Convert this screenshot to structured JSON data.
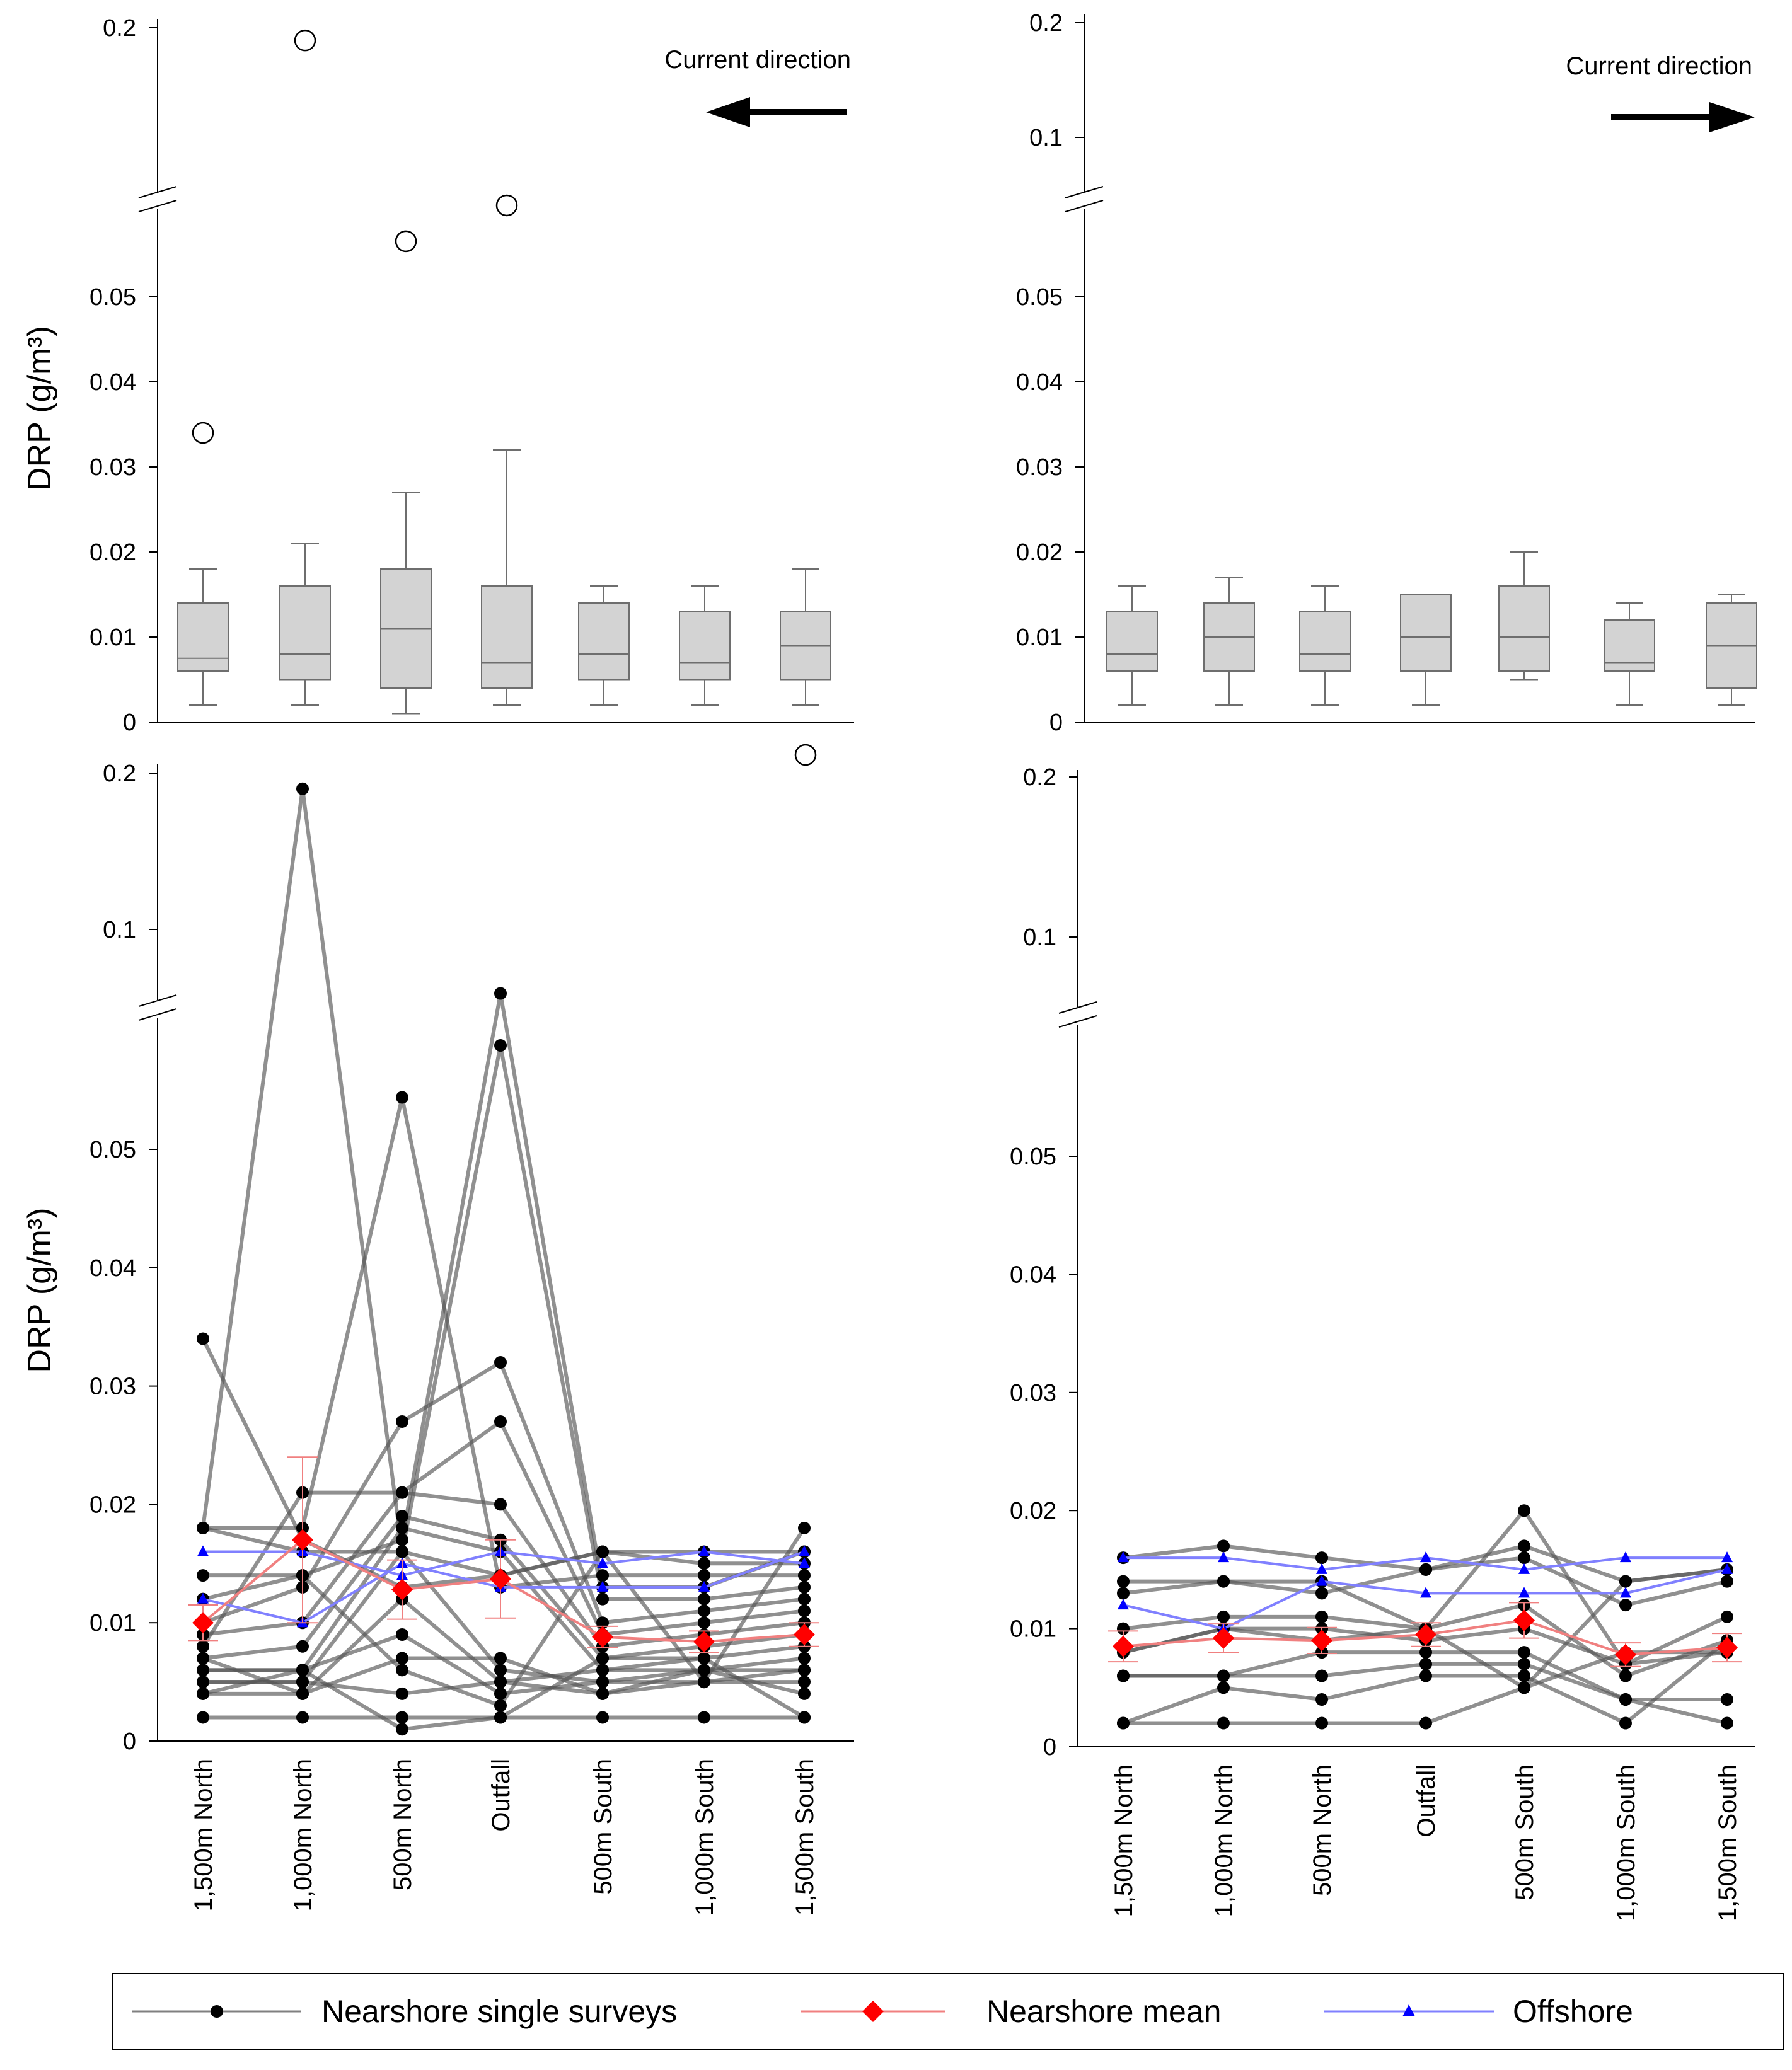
{
  "categories": [
    "1,500m North",
    "1,000m North",
    "500m North",
    "Outfall",
    "500m South",
    "1,000m South",
    "1,500m South"
  ],
  "chart_data": [
    {
      "id": "top-left",
      "type": "box",
      "ylabel": "DRP (g/m³)",
      "annotation": "Current direction",
      "arrow": "left",
      "yticks": [
        "0",
        "0.01",
        "0.02",
        "0.03",
        "0.04",
        "0.05",
        "0.2"
      ],
      "axis_break": true,
      "boxes": [
        {
          "min": 0.002,
          "q1": 0.006,
          "median": 0.0075,
          "q3": 0.014,
          "max": 0.018,
          "outliers": [
            0.034
          ]
        },
        {
          "min": 0.002,
          "q1": 0.005,
          "median": 0.008,
          "q3": 0.016,
          "max": 0.021,
          "outliers": [
            0.19
          ]
        },
        {
          "min": 0.001,
          "q1": 0.004,
          "median": 0.011,
          "q3": 0.018,
          "max": 0.027,
          "outliers": [
            0.055
          ]
        },
        {
          "min": 0.002,
          "q1": 0.004,
          "median": 0.007,
          "q3": 0.016,
          "max": 0.032,
          "outliers": [
            0.06
          ]
        },
        {
          "min": 0.002,
          "q1": 0.005,
          "median": 0.008,
          "q3": 0.014,
          "max": 0.016,
          "outliers": []
        },
        {
          "min": 0.002,
          "q1": 0.005,
          "median": 0.007,
          "q3": 0.013,
          "max": 0.016,
          "outliers": []
        },
        {
          "min": 0.002,
          "q1": 0.005,
          "median": 0.009,
          "q3": 0.013,
          "max": 0.018,
          "outliers": [
            0.2
          ]
        }
      ]
    },
    {
      "id": "top-right",
      "type": "box",
      "ylabel": "",
      "annotation": "Current direction",
      "arrow": "right",
      "yticks": [
        "0",
        "0.01",
        "0.02",
        "0.03",
        "0.04",
        "0.05",
        "0.1",
        "0.2"
      ],
      "axis_break": true,
      "boxes": [
        {
          "min": 0.002,
          "q1": 0.006,
          "median": 0.008,
          "q3": 0.013,
          "max": 0.016,
          "outliers": []
        },
        {
          "min": 0.002,
          "q1": 0.006,
          "median": 0.01,
          "q3": 0.014,
          "max": 0.017,
          "outliers": []
        },
        {
          "min": 0.002,
          "q1": 0.006,
          "median": 0.008,
          "q3": 0.013,
          "max": 0.016,
          "outliers": []
        },
        {
          "min": 0.002,
          "q1": 0.006,
          "median": 0.01,
          "q3": 0.015,
          "max": 0.015,
          "outliers": []
        },
        {
          "min": 0.005,
          "q1": 0.006,
          "median": 0.01,
          "q3": 0.016,
          "max": 0.02,
          "outliers": []
        },
        {
          "min": 0.002,
          "q1": 0.006,
          "median": 0.007,
          "q3": 0.012,
          "max": 0.014,
          "outliers": []
        },
        {
          "min": 0.002,
          "q1": 0.004,
          "median": 0.009,
          "q3": 0.014,
          "max": 0.015,
          "outliers": []
        }
      ]
    },
    {
      "id": "bottom-left",
      "type": "line",
      "ylabel": "DRP (g/m³)",
      "yticks": [
        "0",
        "0.01",
        "0.02",
        "0.03",
        "0.04",
        "0.05",
        "0.1",
        "0.2"
      ],
      "axis_break": true,
      "surveys": [
        [
          0.034,
          0.017,
          0.013,
          0.014,
          0.016,
          0.016,
          0.016
        ],
        [
          0.018,
          0.19,
          0.016,
          0.014,
          0.016,
          0.015,
          0.015
        ],
        [
          0.018,
          0.018,
          0.055,
          0.013,
          0.014,
          0.014,
          0.014
        ],
        [
          0.014,
          0.014,
          0.017,
          0.065,
          0.013,
          0.013,
          0.016
        ],
        [
          0.018,
          0.016,
          0.016,
          0.06,
          0.012,
          0.012,
          0.013
        ],
        [
          0.01,
          0.013,
          0.027,
          0.032,
          0.01,
          0.011,
          0.012
        ],
        [
          0.009,
          0.01,
          0.021,
          0.027,
          0.009,
          0.01,
          0.011
        ],
        [
          0.008,
          0.021,
          0.021,
          0.02,
          0.008,
          0.009,
          0.01
        ],
        [
          0.007,
          0.008,
          0.019,
          0.017,
          0.007,
          0.008,
          0.009
        ],
        [
          0.006,
          0.006,
          0.018,
          0.016,
          0.006,
          0.007,
          0.008
        ],
        [
          0.005,
          0.005,
          0.016,
          0.006,
          0.005,
          0.006,
          0.007
        ],
        [
          0.004,
          0.004,
          0.012,
          0.005,
          0.004,
          0.005,
          0.006
        ],
        [
          0.006,
          0.006,
          0.009,
          0.004,
          0.005,
          0.005,
          0.005
        ],
        [
          0.007,
          0.004,
          0.007,
          0.007,
          0.004,
          0.006,
          0.004
        ],
        [
          0.002,
          0.002,
          0.002,
          0.002,
          0.002,
          0.002,
          0.002
        ],
        [
          0.005,
          0.005,
          0.004,
          0.005,
          0.006,
          0.006,
          0.006
        ],
        [
          0.012,
          0.014,
          0.006,
          0.003,
          0.016,
          0.005,
          0.018
        ],
        [
          0.004,
          0.006,
          0.001,
          0.002,
          0.007,
          0.007,
          0.002
        ]
      ],
      "mean": [
        0.01,
        0.017,
        0.0128,
        0.0137,
        0.0088,
        0.0084,
        0.009
      ],
      "mean_err": [
        0.0015,
        0.007,
        0.0025,
        0.0033,
        0.0009,
        0.0009,
        0.001
      ],
      "offshore": [
        0.012,
        0.01,
        0.015,
        0.013,
        0.013,
        0.013,
        0.016
      ],
      "offshore2": [
        0.016,
        0.016,
        0.014,
        0.016,
        0.015,
        0.016,
        0.015
      ]
    },
    {
      "id": "bottom-right",
      "type": "line",
      "ylabel": "",
      "yticks": [
        "0",
        "0.01",
        "0.02",
        "0.03",
        "0.04",
        "0.05",
        "0.1",
        "0.2"
      ],
      "axis_break": true,
      "surveys": [
        [
          0.016,
          0.017,
          0.016,
          0.015,
          0.017,
          0.014,
          0.015
        ],
        [
          0.014,
          0.014,
          0.013,
          0.015,
          0.016,
          0.012,
          0.014
        ],
        [
          0.013,
          0.014,
          0.014,
          0.01,
          0.02,
          0.007,
          0.011
        ],
        [
          0.01,
          0.011,
          0.011,
          0.01,
          0.012,
          0.006,
          0.009
        ],
        [
          0.008,
          0.01,
          0.01,
          0.009,
          0.01,
          0.007,
          0.008
        ],
        [
          0.006,
          0.006,
          0.008,
          0.008,
          0.008,
          0.004,
          0.004
        ],
        [
          0.006,
          0.006,
          0.006,
          0.007,
          0.007,
          0.004,
          0.002
        ],
        [
          0.002,
          0.005,
          0.004,
          0.006,
          0.006,
          0.002,
          0.009
        ],
        [
          0.002,
          0.002,
          0.002,
          0.002,
          0.005,
          0.014,
          0.015
        ],
        [
          0.008,
          0.01,
          0.009,
          0.01,
          0.005,
          0.008,
          0.008
        ]
      ],
      "mean": [
        0.0085,
        0.0092,
        0.009,
        0.0095,
        0.0107,
        0.0078,
        0.0084
      ],
      "mean_err": [
        0.0013,
        0.0012,
        0.0011,
        0.001,
        0.0015,
        0.001,
        0.0012
      ],
      "offshore": [
        0.016,
        0.016,
        0.015,
        0.016,
        0.015,
        0.016,
        0.016
      ],
      "offshore2": [
        0.012,
        0.01,
        0.014,
        0.013,
        0.013,
        0.013,
        0.015
      ]
    }
  ],
  "legend": {
    "items": [
      {
        "label": "Nearshore single surveys",
        "color": "#808080",
        "marker": "circle",
        "marker_color": "#000000"
      },
      {
        "label": "Nearshore mean",
        "color": "#f08080",
        "marker": "diamond",
        "marker_color": "#ff0000"
      },
      {
        "label": "Offshore",
        "color": "#8080ff",
        "marker": "triangle",
        "marker_color": "#0000ff"
      }
    ]
  }
}
